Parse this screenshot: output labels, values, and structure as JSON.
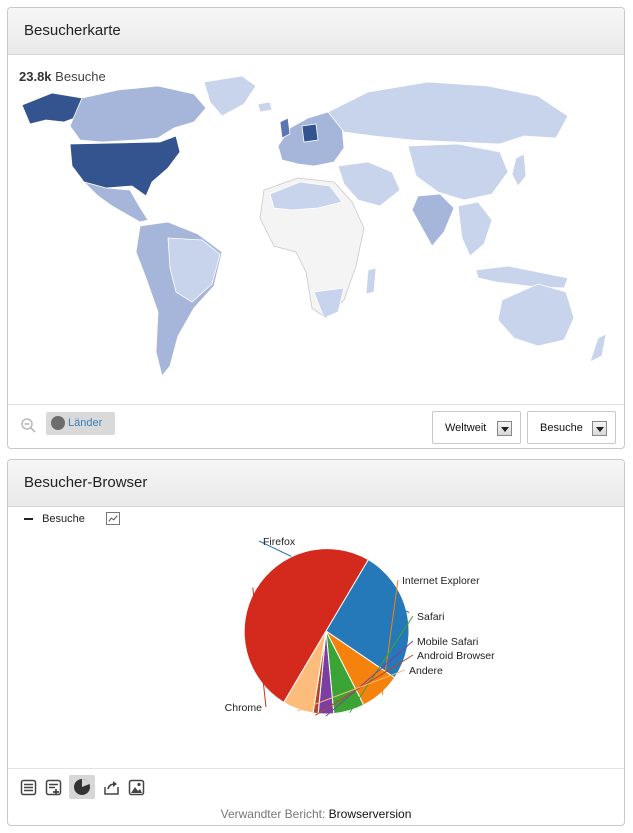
{
  "map_widget": {
    "title": "Besucherkarte",
    "stat_value": "23.8k",
    "stat_label": "Besuche",
    "countries_button": "Länder",
    "region_select": "Weltweit",
    "metric_select": "Besuche",
    "colors": {
      "highest": "#34548f",
      "high": "#5a77b3",
      "mid": "#a6b5da",
      "low": "#c8d3ec",
      "none": "#f4f4f4"
    }
  },
  "browser_widget": {
    "title": "Besucher-Browser",
    "legend_label": "Besuche",
    "related_prefix": "Verwandter Bericht:",
    "related_link": "Browserversion"
  },
  "chart_data": {
    "type": "pie",
    "slices": [
      {
        "label": "Firefox",
        "value": 26,
        "color": "#2579b8"
      },
      {
        "label": "Internet Explorer",
        "value": 8,
        "color": "#f4820c"
      },
      {
        "label": "Safari",
        "value": 6,
        "color": "#3aa535"
      },
      {
        "label": "Mobile Safari",
        "value": 3,
        "color": "#7b3fa2"
      },
      {
        "label": "Android Browser",
        "value": 1,
        "color": "#b5482a"
      },
      {
        "label": "Andere",
        "value": 6,
        "color": "#fbbc7c"
      },
      {
        "label": "Chrome",
        "value": 50,
        "color": "#d42a1e"
      }
    ]
  }
}
